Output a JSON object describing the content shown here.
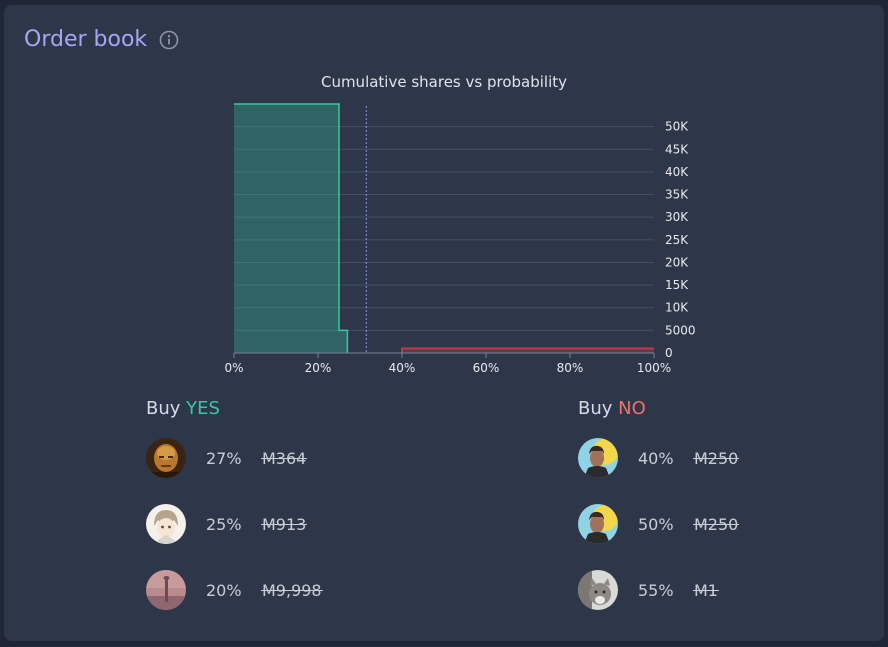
{
  "header": {
    "title": "Order book",
    "info_icon": "info-circle-icon"
  },
  "chart_data": {
    "type": "area",
    "title": "Cumulative shares vs probability",
    "xlabel": "",
    "ylabel": "",
    "xlim": [
      0,
      100
    ],
    "ylim": [
      0,
      55000
    ],
    "x_ticks": [
      "0%",
      "20%",
      "40%",
      "60%",
      "80%",
      "100%"
    ],
    "y_ticks": [
      "0",
      "5000",
      "10K",
      "15K",
      "20K",
      "25K",
      "30K",
      "35K",
      "40K",
      "45K",
      "50K"
    ],
    "grid": true,
    "current_probability": 31.5,
    "series": [
      {
        "side": "yes",
        "color": "#34c9a3",
        "steps": [
          {
            "x": 0,
            "y": 55000
          },
          {
            "x": 25,
            "y": 55000
          },
          {
            "x": 25,
            "y": 5000
          },
          {
            "x": 27,
            "y": 5000
          },
          {
            "x": 27,
            "y": 0
          }
        ]
      },
      {
        "side": "no",
        "color": "#c0394b",
        "steps": [
          {
            "x": 40,
            "y": 1000
          },
          {
            "x": 100,
            "y": 1000
          }
        ]
      }
    ]
  },
  "buy_yes": {
    "label": "Buy",
    "side": "YES",
    "orders": [
      {
        "prob": "27%",
        "amount": "M364",
        "avatar": "avatar-bald-man"
      },
      {
        "prob": "25%",
        "amount": "M913",
        "avatar": "avatar-anime-character"
      },
      {
        "prob": "20%",
        "amount": "M9,998",
        "avatar": "avatar-pink-landscape"
      }
    ]
  },
  "buy_no": {
    "label": "Buy",
    "side": "NO",
    "orders": [
      {
        "prob": "40%",
        "amount": "M250",
        "avatar": "avatar-man-yellow-bg"
      },
      {
        "prob": "50%",
        "amount": "M250",
        "avatar": "avatar-man-yellow-bg"
      },
      {
        "prob": "55%",
        "amount": "M1",
        "avatar": "avatar-gray-cat"
      }
    ]
  },
  "colors": {
    "title": "#a6a6f5",
    "yes": "#34c9a3",
    "no": "#f0716b",
    "card": "#2e3749"
  }
}
